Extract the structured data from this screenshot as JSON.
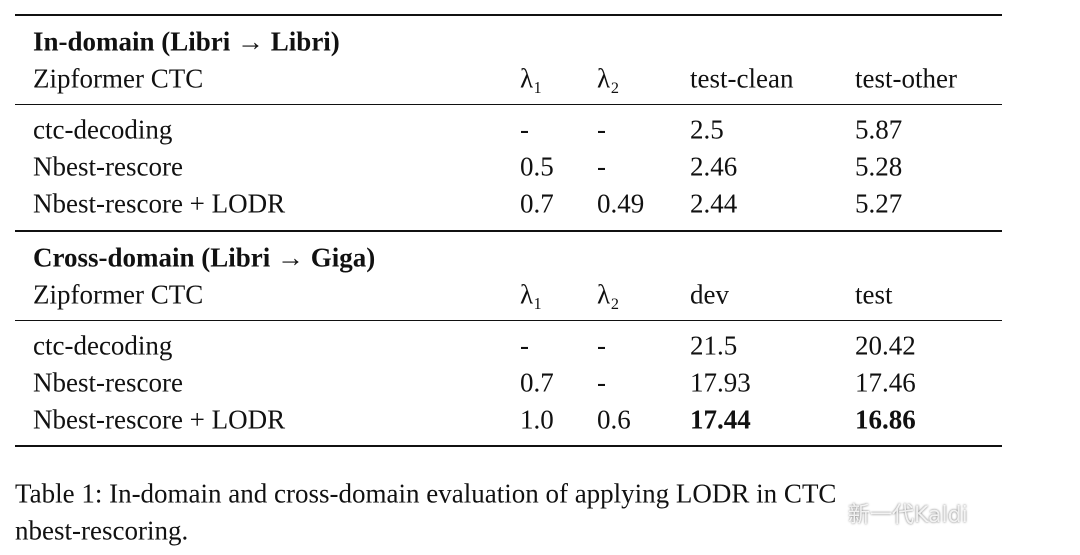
{
  "table": {
    "sections": [
      {
        "title": "In-domain (Libri → Libri)",
        "header": [
          "Zipformer CTC",
          "λ₁",
          "λ₂",
          "test-clean",
          "test-other"
        ],
        "rows": [
          [
            "ctc-decoding",
            "-",
            "-",
            "2.5",
            "5.87"
          ],
          [
            "Nbest-rescore",
            "0.5",
            "-",
            "2.46",
            "5.28"
          ],
          [
            "Nbest-rescore + LODR",
            "0.7",
            "0.49",
            "2.44",
            "5.27"
          ]
        ]
      },
      {
        "title": "Cross-domain (Libri → Giga)",
        "header": [
          "Zipformer CTC",
          "λ₁",
          "λ₂",
          "dev",
          "test"
        ],
        "rows": [
          [
            "ctc-decoding",
            "-",
            "-",
            "21.5",
            "20.42"
          ],
          [
            "Nbest-rescore",
            "0.7",
            "-",
            "17.93",
            "17.46"
          ],
          [
            "Nbest-rescore + LODR",
            "1.0",
            "0.6",
            "17.44",
            "16.86"
          ]
        ],
        "bold_cells": [
          [
            2,
            3
          ],
          [
            2,
            4
          ]
        ]
      }
    ]
  },
  "caption": {
    "lines": [
      "Table 1: In-domain and cross-domain evaluation of applying LODR in CTC",
      "nbest-rescoring."
    ]
  },
  "watermark": "新一代Kaldi"
}
